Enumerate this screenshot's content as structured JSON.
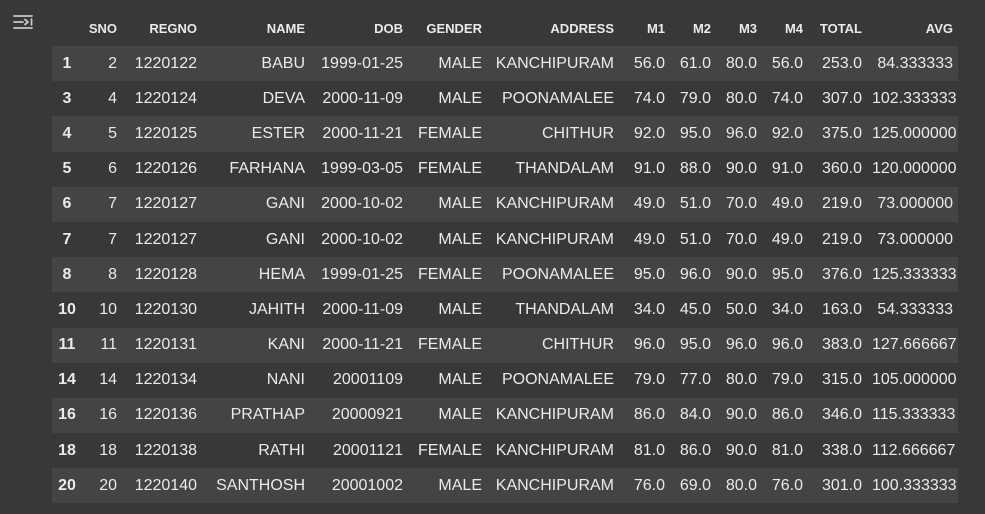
{
  "toolbar": {
    "output_menu_icon": "output-actions-icon"
  },
  "table": {
    "columns": [
      "",
      "SNO",
      "REGNO",
      "NAME",
      "DOB",
      "GENDER",
      "ADDRESS",
      "M1",
      "M2",
      "M3",
      "M4",
      "TOTAL",
      "AVG"
    ],
    "rows": [
      [
        "1",
        "2",
        "1220122",
        "BABU",
        "1999-01-25",
        "MALE",
        "KANCHIPURAM",
        "56.0",
        "61.0",
        "80.0",
        "56.0",
        "253.0",
        "84.333333"
      ],
      [
        "3",
        "4",
        "1220124",
        "DEVA",
        "2000-11-09",
        "MALE",
        "POONAMALEE",
        "74.0",
        "79.0",
        "80.0",
        "74.0",
        "307.0",
        "102.333333"
      ],
      [
        "4",
        "5",
        "1220125",
        "ESTER",
        "2000-11-21",
        "FEMALE",
        "CHITHUR",
        "92.0",
        "95.0",
        "96.0",
        "92.0",
        "375.0",
        "125.000000"
      ],
      [
        "5",
        "6",
        "1220126",
        "FARHANA",
        "1999-03-05",
        "FEMALE",
        "THANDALAM",
        "91.0",
        "88.0",
        "90.0",
        "91.0",
        "360.0",
        "120.000000"
      ],
      [
        "6",
        "7",
        "1220127",
        "GANI",
        "2000-10-02",
        "MALE",
        "KANCHIPURAM",
        "49.0",
        "51.0",
        "70.0",
        "49.0",
        "219.0",
        "73.000000"
      ],
      [
        "7",
        "7",
        "1220127",
        "GANI",
        "2000-10-02",
        "MALE",
        "KANCHIPURAM",
        "49.0",
        "51.0",
        "70.0",
        "49.0",
        "219.0",
        "73.000000"
      ],
      [
        "8",
        "8",
        "1220128",
        "HEMA",
        "1999-01-25",
        "FEMALE",
        "POONAMALEE",
        "95.0",
        "96.0",
        "90.0",
        "95.0",
        "376.0",
        "125.333333"
      ],
      [
        "10",
        "10",
        "1220130",
        "JAHITH",
        "2000-11-09",
        "MALE",
        "THANDALAM",
        "34.0",
        "45.0",
        "50.0",
        "34.0",
        "163.0",
        "54.333333"
      ],
      [
        "11",
        "11",
        "1220131",
        "KANI",
        "2000-11-21",
        "FEMALE",
        "CHITHUR",
        "96.0",
        "95.0",
        "96.0",
        "96.0",
        "383.0",
        "127.666667"
      ],
      [
        "14",
        "14",
        "1220134",
        "NANI",
        "20001109",
        "MALE",
        "POONAMALEE",
        "79.0",
        "77.0",
        "80.0",
        "79.0",
        "315.0",
        "105.000000"
      ],
      [
        "16",
        "16",
        "1220136",
        "PRATHAP",
        "20000921",
        "MALE",
        "KANCHIPURAM",
        "86.0",
        "84.0",
        "90.0",
        "86.0",
        "346.0",
        "115.333333"
      ],
      [
        "18",
        "18",
        "1220138",
        "RATHI",
        "20001121",
        "FEMALE",
        "KANCHIPURAM",
        "81.0",
        "86.0",
        "90.0",
        "81.0",
        "338.0",
        "112.666667"
      ],
      [
        "20",
        "20",
        "1220140",
        "SANTHOSH",
        "20001002",
        "MALE",
        "KANCHIPURAM",
        "76.0",
        "69.0",
        "80.0",
        "76.0",
        "301.0",
        "100.333333"
      ]
    ]
  },
  "colors": {
    "background": "#383838",
    "row_striped": "#444444",
    "text": "#e8eaed",
    "icon": "#c4c7c5"
  }
}
